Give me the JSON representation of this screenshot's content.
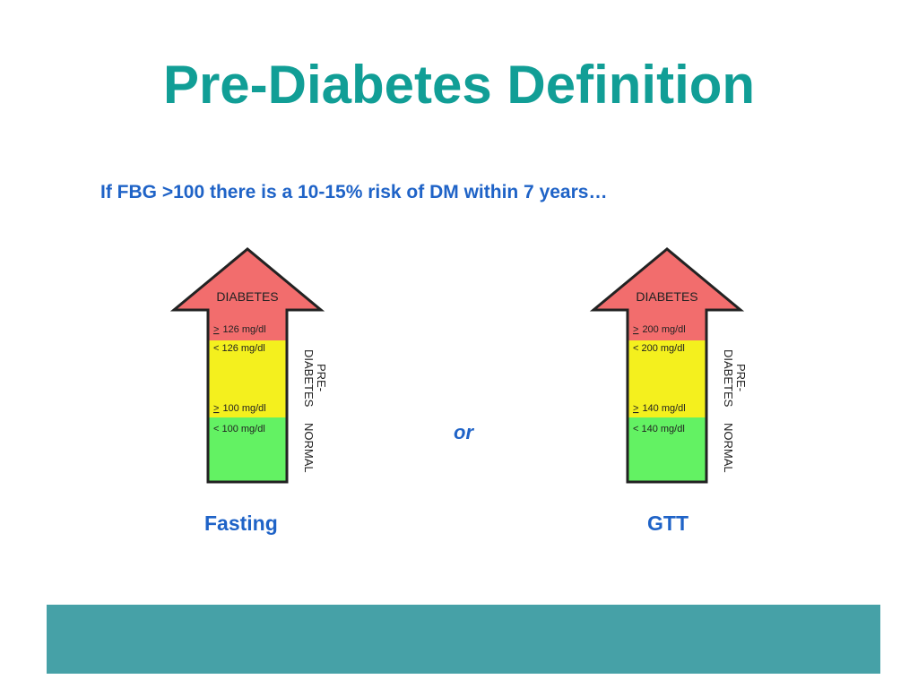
{
  "title": "Pre-Diabetes Definition",
  "subtitle": "If FBG >100 there is a 10-15% risk of DM within 7 years…",
  "connector": "or",
  "colors": {
    "title": "#119e96",
    "text_blue": "#1f63c7",
    "diabetes_red": "#f26d6d",
    "prediabetes_yellow": "#f4f01e",
    "normal_green": "#63f263",
    "footer_teal": "#46a1a7"
  },
  "diagrams": [
    {
      "caption": "Fasting",
      "head_label": "DIABETES",
      "diabetes_threshold": "126 mg/dl",
      "prediabetes_upper": "< 126 mg/dl",
      "prediabetes_lower_threshold": "100 mg/dl",
      "normal_range": "< 100 mg/dl",
      "side_label_prediabetes_line1": "PRE-",
      "side_label_prediabetes_line2": "DIABETES",
      "side_label_normal": "NORMAL"
    },
    {
      "caption": "GTT",
      "head_label": "DIABETES",
      "diabetes_threshold": "200 mg/dl",
      "prediabetes_upper": "< 200 mg/dl",
      "prediabetes_lower_threshold": "140 mg/dl",
      "normal_range": "< 140 mg/dl",
      "side_label_prediabetes_line1": "PRE-",
      "side_label_prediabetes_line2": "DIABETES",
      "side_label_normal": "NORMAL"
    }
  ]
}
